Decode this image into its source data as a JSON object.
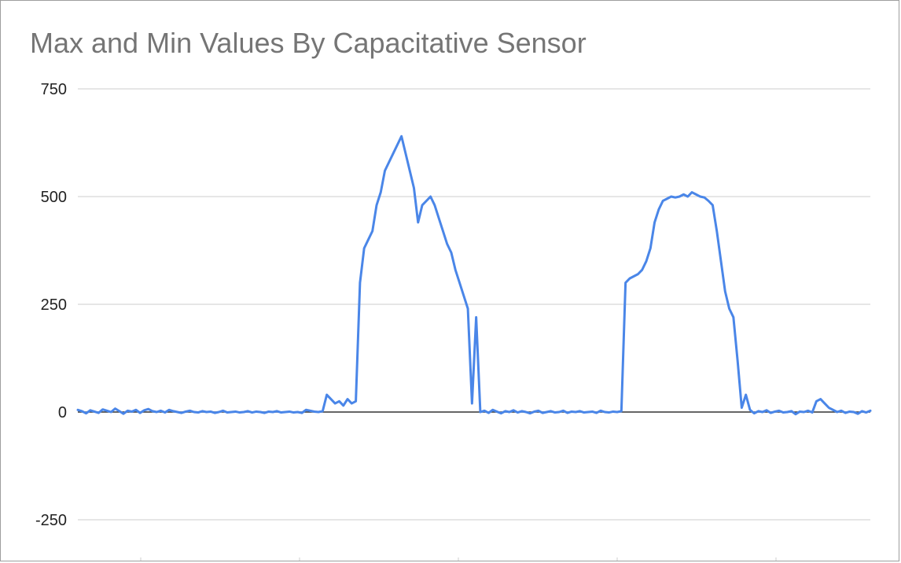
{
  "chart_data": {
    "type": "line",
    "title": "Max and Min Values By Capacitative Sensor",
    "xlabel": "",
    "ylabel": "",
    "ylim": [
      -250,
      750
    ],
    "yticks": [
      750,
      500,
      250,
      0,
      -250
    ],
    "grid": true,
    "legend": "none",
    "x_ticks_labeled": false,
    "x_tick_count": 5,
    "line_color": "#4a86e8",
    "grid_color": "#cccccc",
    "zero_line_color": "#333333",
    "series": [
      {
        "values": [
          5,
          2,
          -3,
          4,
          1,
          -2,
          6,
          3,
          0,
          8,
          2,
          -4,
          3,
          1,
          5,
          -2,
          4,
          7,
          2,
          0,
          3,
          -1,
          5,
          2,
          0,
          -2,
          1,
          3,
          0,
          -1,
          2,
          0,
          1,
          -2,
          0,
          3,
          -1,
          0,
          1,
          -1,
          0,
          2,
          -1,
          1,
          0,
          -2,
          1,
          0,
          2,
          -1,
          0,
          1,
          -1,
          0,
          -2,
          5,
          3,
          1,
          0,
          2,
          40,
          30,
          20,
          25,
          15,
          30,
          20,
          25,
          300,
          380,
          400,
          420,
          480,
          510,
          560,
          580,
          600,
          620,
          640,
          600,
          560,
          520,
          440,
          480,
          490,
          500,
          480,
          450,
          420,
          390,
          370,
          330,
          300,
          270,
          240,
          20,
          220,
          0,
          3,
          -2,
          5,
          1,
          -3,
          2,
          0,
          4,
          -1,
          2,
          0,
          -3,
          1,
          3,
          -2,
          0,
          2,
          -1,
          0,
          3,
          -2,
          1,
          0,
          2,
          -1,
          0,
          1,
          -2,
          3,
          0,
          -1,
          1,
          0,
          2,
          300,
          310,
          315,
          320,
          330,
          350,
          380,
          440,
          470,
          490,
          495,
          500,
          498,
          500,
          505,
          500,
          510,
          505,
          500,
          498,
          490,
          480,
          420,
          350,
          280,
          240,
          220,
          120,
          10,
          40,
          5,
          -3,
          2,
          0,
          4,
          -2,
          1,
          3,
          -1,
          0,
          2,
          -5,
          1,
          0,
          3,
          -1,
          25,
          30,
          20,
          10,
          5,
          0,
          3,
          -2,
          1,
          0,
          -4,
          2,
          -1,
          3
        ]
      }
    ]
  }
}
